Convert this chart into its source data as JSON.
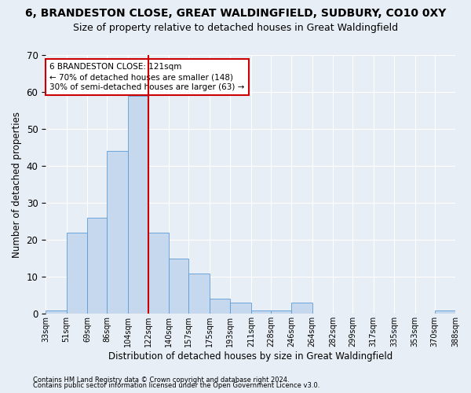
{
  "title1": "6, BRANDESTON CLOSE, GREAT WALDINGFIELD, SUDBURY, CO10 0XY",
  "title2": "Size of property relative to detached houses in Great Waldingfield",
  "xlabel": "Distribution of detached houses by size in Great Waldingfield",
  "ylabel": "Number of detached properties",
  "bar_color": "#c5d8ed",
  "bar_edge_color": "#5b9bd5",
  "annotation_box_text": "6 BRANDESTON CLOSE: 121sqm\n← 70% of detached houses are smaller (148)\n30% of semi-detached houses are larger (63) →",
  "annotation_box_color": "#ffffff",
  "annotation_box_edge_color": "#cc0000",
  "property_line_color": "#cc0000",
  "property_line_x": 122,
  "footnote1": "Contains HM Land Registry data © Crown copyright and database right 2024.",
  "footnote2": "Contains public sector information licensed under the Open Government Licence v3.0.",
  "bin_edges": [
    33,
    51,
    69,
    86,
    104,
    122,
    140,
    157,
    175,
    193,
    211,
    228,
    246,
    264,
    282,
    299,
    317,
    335,
    353,
    370,
    388
  ],
  "bar_heights": [
    1,
    22,
    26,
    44,
    59,
    22,
    15,
    11,
    4,
    3,
    1,
    1,
    3,
    0,
    0,
    0,
    0,
    0,
    0,
    1
  ],
  "ylim": [
    0,
    70
  ],
  "yticks": [
    0,
    10,
    20,
    30,
    40,
    50,
    60,
    70
  ],
  "background_color": "#e8eef5",
  "plot_bg_color": "#e8eef5",
  "grid_color": "#ffffff",
  "title1_fontsize": 10,
  "title2_fontsize": 9,
  "tick_label_fontsize": 7,
  "ylabel_fontsize": 8.5,
  "xlabel_fontsize": 8.5,
  "ytick_fontsize": 8.5,
  "footnote_fontsize": 6
}
